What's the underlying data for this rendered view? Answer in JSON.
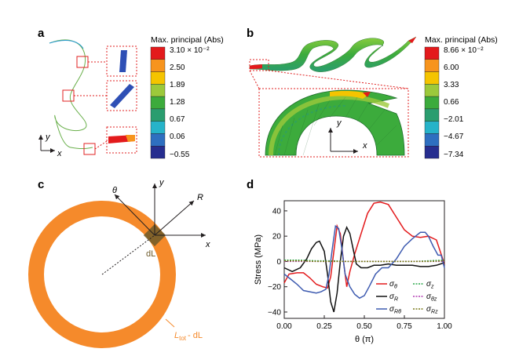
{
  "panels": {
    "a": {
      "letter": "a",
      "legend_title": "Max. principal (Abs)",
      "legend_values": [
        "3.10 × 10⁻²",
        "2.50",
        "1.89",
        "1.28",
        "0.67",
        "0.06",
        "−0.55"
      ],
      "axis_x": "x",
      "axis_y": "y"
    },
    "b": {
      "letter": "b",
      "legend_title": "Max. principal (Abs)",
      "legend_values": [
        "8.66 × 10⁻²",
        "6.00",
        "3.33",
        "0.66",
        "−2.01",
        "−4.67",
        "−7.34"
      ],
      "axis_x": "x",
      "axis_y": "y"
    },
    "c": {
      "letter": "c",
      "label_theta": "θ",
      "label_y": "y",
      "label_R": "R",
      "label_x": "x",
      "label_dL": "dL",
      "label_Ltot": "L",
      "label_Ltot_sub": "tot",
      "label_Ltot_suffix": "- dL"
    },
    "d": {
      "letter": "d"
    }
  },
  "colors": {
    "ring": "#f58a2b",
    "element": "#6d5a2a",
    "red_box": "#e02020",
    "colorbar": [
      "#e31a1c",
      "#f7941d",
      "#f5c400",
      "#9cc93b",
      "#3cab3c",
      "#2a9d6f",
      "#26b3c9",
      "#2e6fc0",
      "#262d8f"
    ]
  },
  "chart_data": {
    "type": "line",
    "xlabel": "θ (π)",
    "ylabel": "Stress (MPa)",
    "xlim": [
      0,
      1
    ],
    "ylim": [
      -45,
      48
    ],
    "x_ticks": [
      0,
      0.25,
      0.5,
      0.75,
      1.0
    ],
    "x_tick_labels": [
      "0.00",
      "0.25",
      "0.50",
      "0.75",
      "1.00"
    ],
    "y_ticks": [
      -40,
      -20,
      0,
      20,
      40
    ],
    "y_tick_labels": [
      "−40",
      "−20",
      "0",
      "20",
      "40"
    ],
    "legend_position": "bottom-right",
    "series": [
      {
        "name": "σθ",
        "sym": "σ",
        "sub": "θ",
        "color": "#e31a1c",
        "dash": "",
        "x": [
          0,
          0.03,
          0.08,
          0.12,
          0.16,
          0.2,
          0.24,
          0.27,
          0.29,
          0.31,
          0.33,
          0.35,
          0.37,
          0.39,
          0.41,
          0.44,
          0.48,
          0.52,
          0.56,
          0.6,
          0.65,
          0.7,
          0.75,
          0.8,
          0.85,
          0.9,
          0.95,
          1.0
        ],
        "y": [
          -17,
          -10,
          -9,
          -9,
          -13,
          -18,
          -20,
          -21,
          -12,
          8,
          28,
          22,
          0,
          -20,
          -8,
          6,
          22,
          38,
          46,
          47,
          45,
          35,
          25,
          20,
          19,
          20,
          17,
          -2
        ]
      },
      {
        "name": "σR",
        "sym": "σ",
        "sub": "R",
        "color": "#111111",
        "dash": "",
        "x": [
          0,
          0.05,
          0.1,
          0.14,
          0.17,
          0.2,
          0.22,
          0.25,
          0.27,
          0.29,
          0.31,
          0.33,
          0.35,
          0.37,
          0.39,
          0.41,
          0.43,
          0.45,
          0.48,
          0.52,
          0.56,
          0.6,
          0.65,
          0.7,
          0.75,
          0.8,
          0.85,
          0.9,
          0.95,
          1.0
        ],
        "y": [
          -5,
          -8,
          -5,
          2,
          10,
          15,
          16,
          8,
          -10,
          -32,
          -40,
          -25,
          0,
          20,
          27,
          22,
          10,
          -2,
          -5,
          -5,
          -3,
          -3,
          -2,
          -3,
          -3,
          -3,
          -4,
          -4,
          -3,
          -1
        ]
      },
      {
        "name": "σRθ",
        "sym": "σ",
        "sub": "Rθ",
        "color": "#3e5bb0",
        "dash": "",
        "x": [
          0,
          0.04,
          0.08,
          0.12,
          0.16,
          0.2,
          0.23,
          0.26,
          0.28,
          0.3,
          0.32,
          0.34,
          0.36,
          0.38,
          0.41,
          0.44,
          0.47,
          0.5,
          0.53,
          0.57,
          0.61,
          0.65,
          0.7,
          0.75,
          0.8,
          0.85,
          0.88,
          0.9,
          0.93,
          0.96,
          0.98,
          1.0
        ],
        "y": [
          -10,
          -14,
          -18,
          -23,
          -24,
          -25,
          -24,
          -22,
          -10,
          10,
          28,
          26,
          10,
          -10,
          -20,
          -26,
          -29,
          -27,
          -20,
          -10,
          -5,
          -5,
          2,
          12,
          18,
          23,
          23,
          20,
          12,
          5,
          5,
          -5
        ]
      },
      {
        "name": "σz",
        "sym": "σ",
        "sub": "z",
        "color": "#2aa84a",
        "dash": "2,1.5",
        "x": [
          0,
          0.1,
          0.2,
          0.3,
          0.4,
          0.5,
          0.6,
          0.7,
          0.8,
          0.9,
          1.0
        ],
        "y": [
          1,
          1,
          0.5,
          0.5,
          0,
          0,
          0,
          0,
          0,
          0.5,
          1
        ]
      },
      {
        "name": "σθz",
        "sym": "σ",
        "sub": "θz",
        "color": "#b23bb3",
        "dash": "2,1.5",
        "x": [
          0,
          0.1,
          0.2,
          0.3,
          0.4,
          0.5,
          0.6,
          0.7,
          0.8,
          0.9,
          1.0
        ],
        "y": [
          0,
          0,
          0,
          0,
          0,
          0,
          0,
          0,
          0,
          0,
          0
        ]
      },
      {
        "name": "σRz",
        "sym": "σ",
        "sub": "Rz",
        "color": "#7a7a1a",
        "dash": "2,1.5",
        "x": [
          0,
          0.1,
          0.2,
          0.3,
          0.4,
          0.5,
          0.6,
          0.7,
          0.8,
          0.9,
          1.0
        ],
        "y": [
          0.5,
          0.5,
          0,
          0,
          0,
          0,
          0,
          0,
          0,
          0,
          0.5
        ]
      }
    ]
  }
}
